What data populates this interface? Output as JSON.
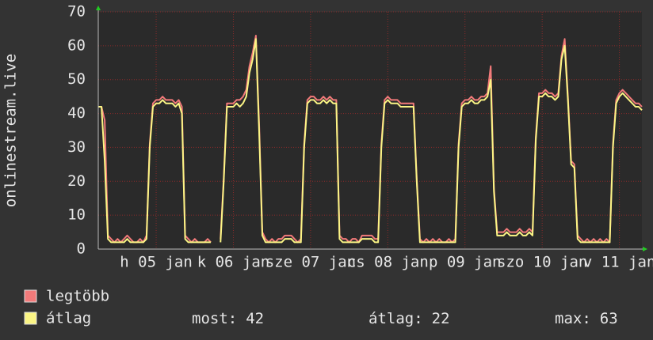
{
  "chart_data": {
    "type": "line",
    "ylabel": "onlinestream.live",
    "x": [
      0,
      1,
      2,
      3,
      4,
      5,
      6,
      7,
      8,
      9,
      10,
      11,
      12,
      13,
      14,
      15,
      16,
      17,
      18,
      19,
      20,
      21,
      22,
      23,
      24,
      25,
      26,
      27,
      28,
      29,
      30,
      31,
      32,
      33,
      34,
      35,
      36,
      37,
      38,
      39,
      40,
      41,
      42,
      43,
      44,
      45,
      46,
      47,
      48,
      49,
      50,
      51,
      52,
      53,
      54,
      55,
      56,
      57,
      58,
      59,
      60,
      61,
      62,
      63,
      64,
      65,
      66,
      67,
      68,
      69,
      70,
      71,
      72,
      73,
      74,
      75,
      76,
      77,
      78,
      79,
      80,
      81,
      82,
      83,
      84,
      85,
      86,
      87,
      88,
      89,
      90,
      91,
      92,
      93,
      94,
      95,
      96,
      97,
      98,
      99,
      100,
      101,
      102,
      103,
      104,
      105,
      106,
      107,
      108,
      109,
      110,
      111,
      112,
      113,
      114,
      115,
      116,
      117,
      118,
      119,
      120,
      121,
      122,
      123,
      124,
      125,
      126,
      127,
      128,
      129,
      130,
      131,
      132,
      133,
      134,
      135,
      136,
      137,
      138,
      139,
      140,
      141,
      142,
      143,
      144,
      145,
      146,
      147,
      148,
      149,
      150,
      151,
      152,
      153,
      154,
      155,
      156,
      157,
      158,
      159,
      160,
      161,
      162,
      163,
      164,
      165,
      166,
      167,
      168,
      169
    ],
    "series": [
      {
        "name": "legtöbb",
        "color": "#f27a7a",
        "values": [
          42,
          42,
          38,
          4,
          3,
          2,
          3,
          2,
          3,
          4,
          3,
          2,
          2,
          3,
          2,
          4,
          31,
          43,
          44,
          44,
          45,
          44,
          44,
          44,
          43,
          44,
          42,
          4,
          3,
          2,
          3,
          2,
          2,
          2,
          3,
          2,
          null,
          null,
          3,
          21,
          43,
          43,
          43,
          44,
          44,
          45,
          47,
          54,
          58,
          63,
          37,
          5,
          3,
          2,
          3,
          2,
          3,
          3,
          4,
          4,
          4,
          3,
          2,
          3,
          31,
          44,
          45,
          45,
          44,
          44,
          45,
          44,
          45,
          44,
          44,
          4,
          3,
          3,
          2,
          3,
          3,
          2,
          4,
          4,
          4,
          4,
          3,
          3,
          31,
          44,
          45,
          44,
          44,
          44,
          43,
          43,
          43,
          43,
          43,
          21,
          3,
          2,
          3,
          2,
          3,
          2,
          3,
          2,
          2,
          3,
          2,
          3,
          31,
          43,
          44,
          44,
          45,
          44,
          44,
          45,
          45,
          46,
          54,
          18,
          5,
          5,
          5,
          6,
          5,
          5,
          5,
          6,
          5,
          5,
          6,
          5,
          33,
          46,
          46,
          47,
          46,
          46,
          45,
          46,
          57,
          62,
          45,
          26,
          25,
          4,
          3,
          2,
          3,
          2,
          3,
          2,
          3,
          2,
          3,
          2,
          31,
          44,
          46,
          47,
          46,
          45,
          44,
          43,
          43,
          42
        ]
      },
      {
        "name": "átlag",
        "color": "#fbf585",
        "values": [
          42,
          42,
          26,
          3,
          2,
          2,
          2,
          2,
          2,
          3,
          2,
          2,
          2,
          2,
          2,
          3,
          30,
          42,
          43,
          43,
          44,
          43,
          43,
          43,
          42,
          43,
          40,
          3,
          2,
          2,
          2,
          2,
          2,
          2,
          2,
          2,
          null,
          null,
          2,
          20,
          42,
          42,
          42,
          43,
          42,
          43,
          45,
          52,
          56,
          62,
          35,
          4,
          2,
          2,
          2,
          2,
          2,
          2,
          3,
          3,
          3,
          2,
          2,
          2,
          30,
          43,
          44,
          44,
          43,
          43,
          44,
          43,
          44,
          43,
          43,
          3,
          2,
          2,
          2,
          2,
          2,
          2,
          3,
          3,
          3,
          3,
          2,
          2,
          30,
          43,
          44,
          43,
          43,
          43,
          42,
          42,
          42,
          42,
          42,
          20,
          2,
          2,
          2,
          2,
          2,
          2,
          2,
          2,
          2,
          2,
          2,
          2,
          30,
          42,
          43,
          43,
          44,
          43,
          43,
          44,
          44,
          45,
          50,
          17,
          4,
          4,
          4,
          5,
          4,
          4,
          4,
          5,
          4,
          4,
          5,
          4,
          32,
          45,
          45,
          46,
          45,
          45,
          44,
          45,
          56,
          60,
          44,
          25,
          24,
          3,
          2,
          2,
          2,
          2,
          2,
          2,
          2,
          2,
          2,
          2,
          30,
          43,
          45,
          46,
          45,
          44,
          43,
          42,
          42,
          41
        ]
      }
    ],
    "xlim": [
      0,
      169
    ],
    "xticks": [
      {
        "value": 18,
        "label": "h 05 jan"
      },
      {
        "value": 42,
        "label": "k 06 jan"
      },
      {
        "value": 66,
        "label": "sze 07 jan"
      },
      {
        "value": 90,
        "label": "cs 08 jan"
      },
      {
        "value": 114,
        "label": "p 09 jan"
      },
      {
        "value": 138,
        "label": "szo 10 jan"
      },
      {
        "value": 162,
        "label": "v 11 jan"
      }
    ],
    "ylim": [
      0,
      70
    ],
    "yticks": [
      0,
      10,
      20,
      30,
      40,
      50,
      60,
      70
    ],
    "grid": true,
    "stats": [
      {
        "label": "most:",
        "value": 42
      },
      {
        "label": "átlag:",
        "value": 22
      },
      {
        "label": "max:",
        "value": 63
      }
    ]
  }
}
